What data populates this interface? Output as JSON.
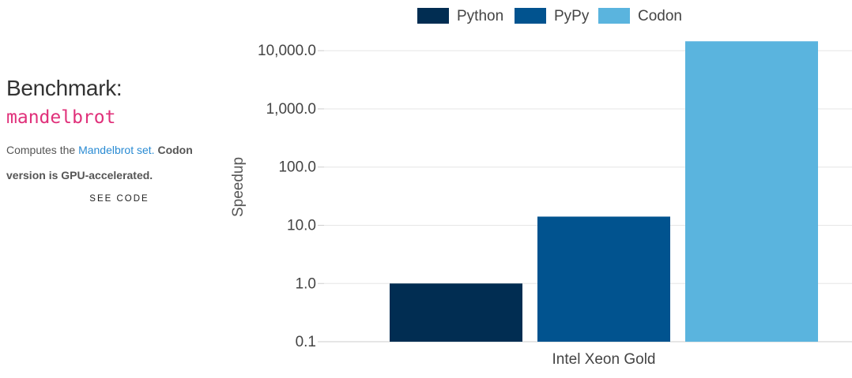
{
  "sidebar": {
    "heading": "Benchmark:",
    "benchmark": "mandelbrot",
    "description": "Computes the",
    "description_link": "Mandelbrot set.",
    "description_bold": "Codon version is GPU-accelerated.",
    "code_link": "SEE CODE"
  },
  "chart_data": {
    "type": "bar",
    "y_label": "Speedup",
    "log_scale": true,
    "grid": true,
    "categories": [
      "Intel Xeon Gold"
    ],
    "series": [
      {
        "name": "Python",
        "color": "#012d52",
        "values": [
          1.0
        ]
      },
      {
        "name": "PyPy",
        "color": "#01538f",
        "values": [
          14.1
        ]
      },
      {
        "name": "Codon",
        "color": "#5ab4de",
        "values": [
          14500
        ]
      }
    ],
    "ylim": [
      0.1,
      20000
    ],
    "yticks": [
      0.1,
      {
        "value": 1,
        "label": "1.0"
      },
      {
        "value": 10,
        "label": "10.0"
      },
      {
        "value": 100,
        "label": "100.0"
      },
      {
        "value": 1000,
        "label": "1,000.0"
      },
      {
        "value": 10000,
        "label": "10,000.0"
      }
    ],
    "legend": "top"
  }
}
